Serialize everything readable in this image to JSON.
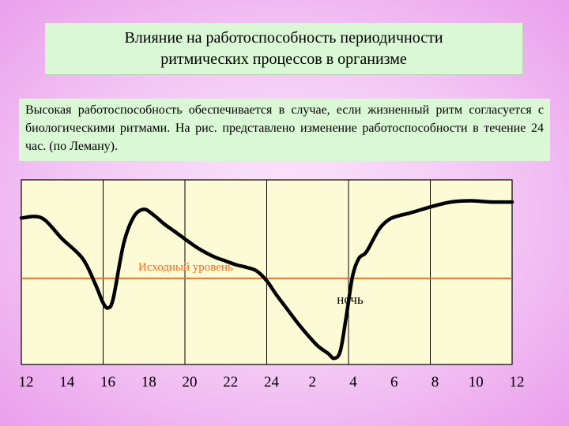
{
  "slide": {
    "title_line1": "Влияние на работоспособность периодичности",
    "title_line2": "ритмических процессов в организме",
    "description": "Высокая работоспособность обеспечивается в случае, если жизненный ритм согласуется с биологическими ритмами. На рис. представлено изменение работоспособности в течение 24 час. (по Леману)."
  },
  "chart_data": {
    "type": "line",
    "title": "",
    "xlabel": "",
    "ylabel": "",
    "x_tick_labels": [
      "12",
      "14",
      "16",
      "18",
      "20",
      "22",
      "24",
      "2",
      "4",
      "6",
      "8",
      "10",
      "12"
    ],
    "x_hours_elapsed_range": [
      0,
      24
    ],
    "baseline": {
      "label": "Исходный уровень",
      "value": 0,
      "color": "#ee6a1f"
    },
    "annotation": {
      "text": "ночь",
      "x": 16
    },
    "y_range": [
      -3.5,
      4
    ],
    "grid": "vertical",
    "line_color": "#000000",
    "background_color": "#fdfbd6",
    "series": [
      {
        "x": [
          0,
          1,
          2,
          3,
          3.6,
          4,
          4.25,
          4.5,
          5,
          5.5,
          6,
          6.5,
          7,
          7.5,
          8,
          8.5,
          9,
          9.5,
          10,
          10.5,
          11,
          11.5,
          12,
          12.5,
          13,
          13.5,
          14,
          14.5,
          15,
          15.3,
          15.6,
          15.9,
          16.2,
          16.5,
          16.8,
          17,
          17.5,
          18,
          18.5,
          19,
          20,
          21,
          22,
          23,
          24
        ],
        "y": [
          2.45,
          2.45,
          1.6,
          0.8,
          -0.2,
          -1.0,
          -1.2,
          -0.8,
          1.4,
          2.5,
          2.8,
          2.55,
          2.2,
          1.9,
          1.6,
          1.3,
          1.05,
          0.85,
          0.7,
          0.55,
          0.45,
          0.3,
          -0.1,
          -0.7,
          -1.25,
          -1.8,
          -2.3,
          -2.75,
          -3.05,
          -3.25,
          -2.95,
          -1.5,
          0.1,
          0.8,
          1.0,
          1.25,
          2.0,
          2.4,
          2.55,
          2.65,
          2.9,
          3.1,
          3.15,
          3.1,
          3.1
        ]
      }
    ]
  }
}
